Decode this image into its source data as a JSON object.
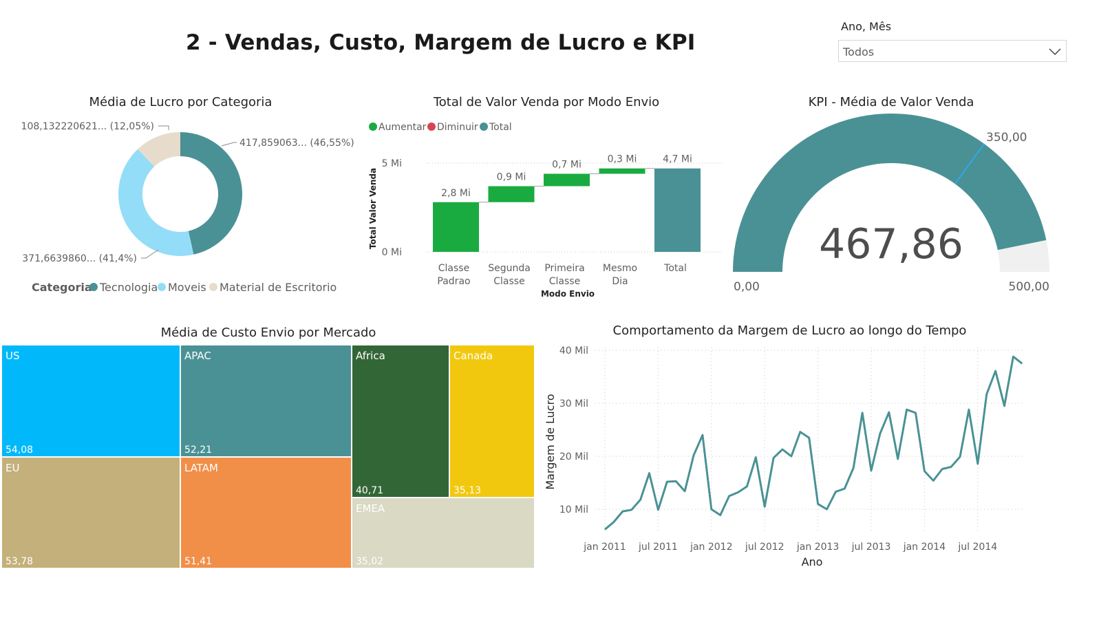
{
  "page": {
    "title": "2 - Vendas, Custo, Margem de Lucro e KPI"
  },
  "slicer": {
    "label": "Ano, Mês",
    "value": "Todos",
    "icon": "chevron-down-icon"
  },
  "donut": {
    "title": "Média de Lucro por Categoria",
    "legend_title": "Categoria",
    "labels": [
      "417,859063... (46,55%)",
      "371,6639860... (41,4%)",
      "108,132220621... (12,05%)"
    ]
  },
  "waterfall": {
    "title": "Total de Valor Venda por Modo Envio",
    "legend": [
      "Aumentar",
      "Diminuir",
      "Total"
    ],
    "ylabel": "Total Valor Venda",
    "xlabel": "Modo Envio",
    "yticks": [
      "5 Mi",
      "0 Mi"
    ],
    "data_labels": [
      "2,8 Mi",
      "0,9 Mi",
      "0,7 Mi",
      "0,3 Mi",
      "4,7 Mi"
    ]
  },
  "gauge": {
    "title": "KPI - Média de Valor Venda",
    "value_label": "467,86",
    "min_label": "0,00",
    "max_label": "500,00",
    "target_label": "350,00"
  },
  "treemap": {
    "title": "Média de Custo Envio por Mercado",
    "cells": [
      {
        "name": "US",
        "value": "54,08"
      },
      {
        "name": "APAC",
        "value": "52,21"
      },
      {
        "name": "Africa",
        "value": "40,71"
      },
      {
        "name": "Canada",
        "value": "35,13"
      },
      {
        "name": "EU",
        "value": "53,78"
      },
      {
        "name": "LATAM",
        "value": "51,41"
      },
      {
        "name": "EMEA",
        "value": "35,02"
      }
    ]
  },
  "line": {
    "title": "Comportamento da Margem de Lucro ao longo do Tempo",
    "ylabel": "Margem de Lucro",
    "xlabel": "Ano",
    "yticks": [
      "40 Mil",
      "30 Mil",
      "20 Mil",
      "10 Mil"
    ],
    "xticks": [
      "jan 2011",
      "jul 2011",
      "jan 2012",
      "jul 2012",
      "jan 2013",
      "jul 2013",
      "jan 2014",
      "jul 2014"
    ]
  },
  "colors": {
    "teal": "#4A9195",
    "light_blue": "#94DDF8",
    "beige": "#E7DCCB",
    "increase": "#1AAB40",
    "decrease": "#D64554",
    "us": "#01B8FA",
    "apac": "#4A9195",
    "africa": "#336636",
    "canada": "#F2C80F",
    "eu": "#C4B07B",
    "latam": "#F18F49",
    "emea": "#D9D9C4",
    "gauge_bg": "#F0F0F0",
    "target": "#2FA9E6"
  },
  "chart_data": [
    {
      "type": "pie",
      "title": "Média de Lucro por Categoria",
      "categories": [
        "Tecnologia",
        "Moveis",
        "Material de Escritorio"
      ],
      "values": [
        417.859063,
        371.663986,
        108.132220621
      ],
      "percentages": [
        46.55,
        41.4,
        12.05
      ]
    },
    {
      "type": "bar",
      "subtype": "waterfall",
      "title": "Total de Valor Venda por Modo Envio",
      "categories": [
        "Classe Padrao",
        "Segunda Classe",
        "Primeira Classe",
        "Mesmo Dia",
        "Total"
      ],
      "values": [
        2.8,
        0.9,
        0.7,
        0.3,
        4.7
      ],
      "kinds": [
        "increase",
        "increase",
        "increase",
        "increase",
        "total"
      ],
      "unit": "Mi",
      "xlabel": "Modo Envio",
      "ylabel": "Total Valor Venda",
      "ylim": [
        0,
        5
      ]
    },
    {
      "type": "gauge",
      "title": "KPI - Média de Valor Venda",
      "value": 467.86,
      "min": 0,
      "max": 500,
      "target": 350
    },
    {
      "type": "treemap",
      "title": "Média de Custo Envio por Mercado",
      "categories": [
        "US",
        "EU",
        "APAC",
        "LATAM",
        "Africa",
        "Canada",
        "EMEA"
      ],
      "values": [
        54.08,
        53.78,
        52.21,
        51.41,
        40.71,
        35.13,
        35.02
      ]
    },
    {
      "type": "line",
      "title": "Comportamento da Margem de Lucro ao longo do Tempo",
      "xlabel": "Ano",
      "ylabel": "Margem de Lucro",
      "x": [
        "2011-01",
        "2011-02",
        "2011-03",
        "2011-04",
        "2011-05",
        "2011-06",
        "2011-07",
        "2011-08",
        "2011-09",
        "2011-10",
        "2011-11",
        "2011-12",
        "2012-01",
        "2012-02",
        "2012-03",
        "2012-04",
        "2012-05",
        "2012-06",
        "2012-07",
        "2012-08",
        "2012-09",
        "2012-10",
        "2012-11",
        "2012-12",
        "2013-01",
        "2013-02",
        "2013-03",
        "2013-04",
        "2013-05",
        "2013-06",
        "2013-07",
        "2013-08",
        "2013-09",
        "2013-10",
        "2013-11",
        "2013-12",
        "2014-01",
        "2014-02",
        "2014-03",
        "2014-04",
        "2014-05",
        "2014-06",
        "2014-07",
        "2014-08",
        "2014-09",
        "2014-10",
        "2014-11",
        "2014-12"
      ],
      "series": [
        {
          "values": [
            6200,
            7600,
            9600,
            9900,
            11800,
            16800,
            9900,
            15200,
            15300,
            13400,
            20200,
            24000,
            10000,
            8900,
            12500,
            13200,
            14300,
            19800,
            10500,
            19700,
            21300,
            20000,
            24600,
            23500,
            11000,
            10000,
            13300,
            13900,
            17800,
            28200,
            17300,
            24300,
            28300,
            19500,
            28800,
            28200,
            17200,
            15400,
            17600,
            18000,
            19900,
            28800,
            18600,
            31700,
            36100,
            29500,
            38800,
            37500
          ]
        }
      ],
      "ylim": [
        0,
        40000
      ]
    }
  ]
}
